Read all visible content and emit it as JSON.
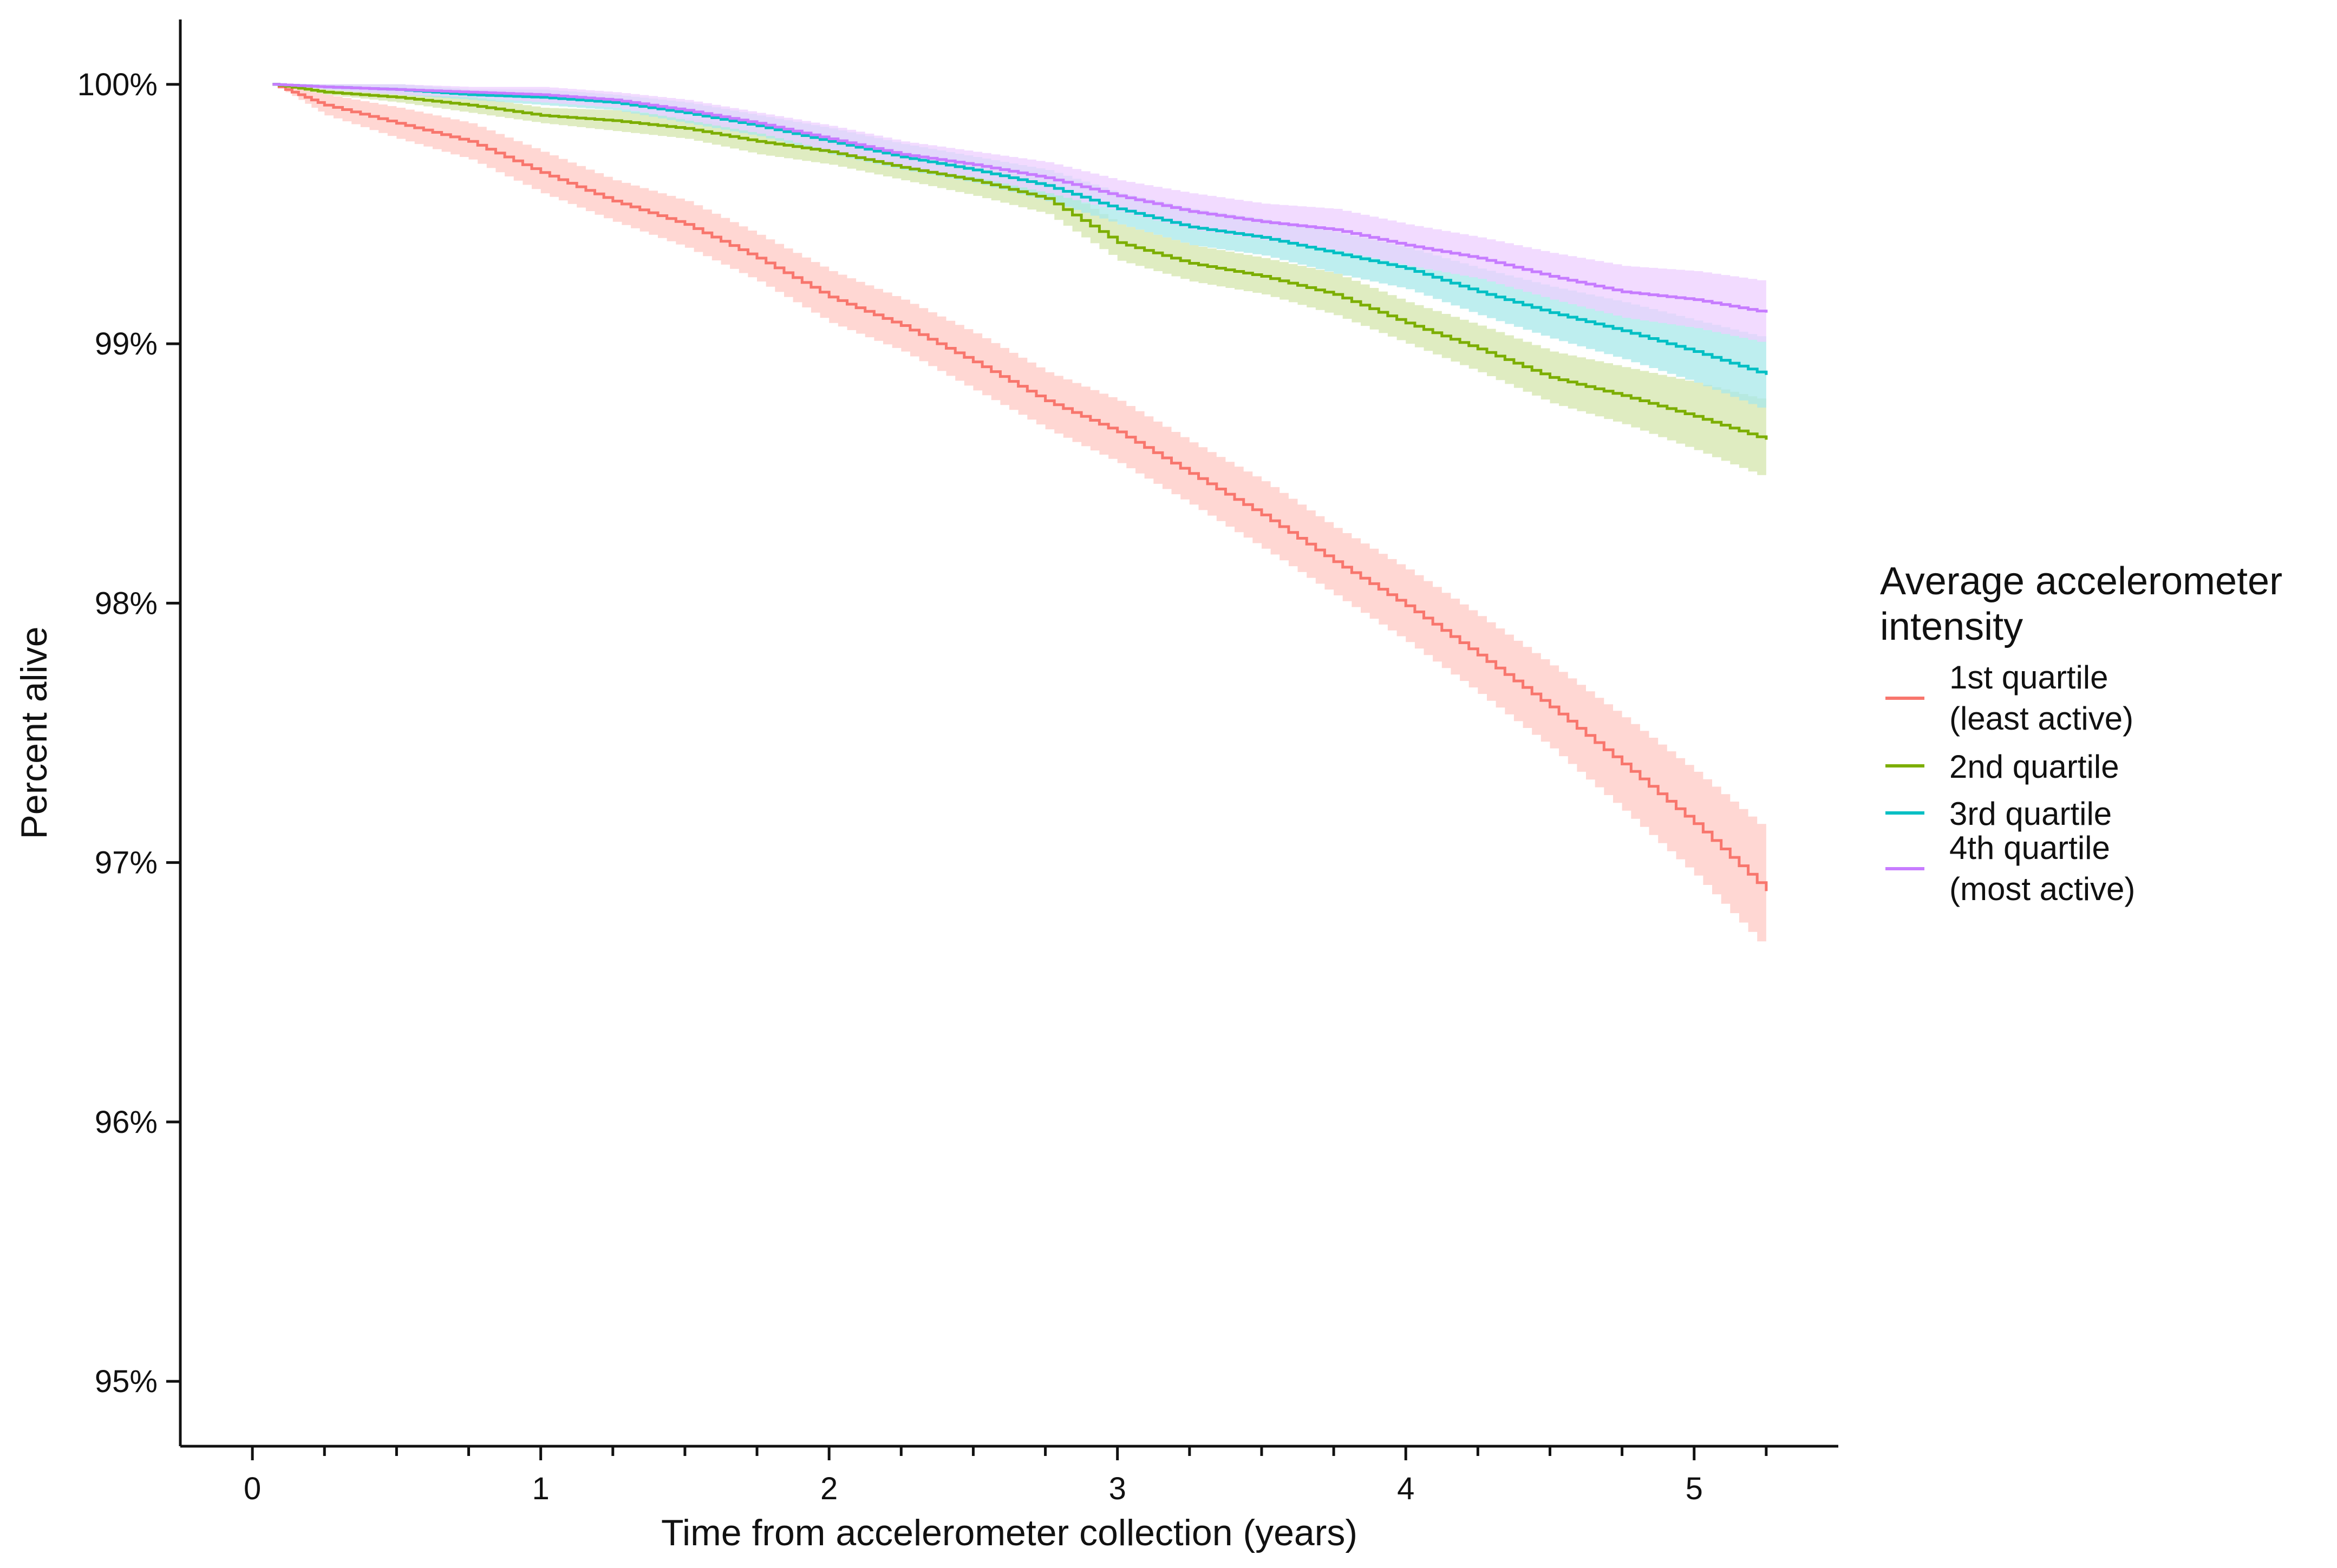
{
  "chart_data": {
    "type": "line",
    "title": "",
    "xlabel": "Time from accelerometer collection (years)",
    "ylabel": "Percent alive",
    "xlim": [
      -0.25,
      5.5
    ],
    "ylim": [
      94.75,
      100.25
    ],
    "x_ticks": [
      0,
      1,
      2,
      3,
      4,
      5
    ],
    "x_tick_labels": [
      "0",
      "1",
      "2",
      "3",
      "4",
      "5"
    ],
    "x_minor_ticks": [
      0.25,
      0.5,
      0.75,
      1.25,
      1.5,
      1.75,
      2.25,
      2.5,
      2.75,
      3.25,
      3.5,
      3.75,
      4.25,
      4.5,
      4.75,
      5.25
    ],
    "y_ticks": [
      95,
      96,
      97,
      98,
      99,
      100
    ],
    "y_tick_labels": [
      "95%",
      "96%",
      "97%",
      "98%",
      "99%",
      "100%"
    ],
    "grid": false,
    "legend": {
      "position": "right",
      "title_lines": [
        "Average accelerometer",
        "intensity"
      ]
    },
    "x": [
      0.07,
      0.25,
      0.5,
      0.75,
      1.0,
      1.25,
      1.5,
      1.75,
      2.0,
      2.25,
      2.5,
      2.75,
      3.0,
      3.25,
      3.5,
      3.75,
      4.0,
      4.25,
      4.5,
      4.75,
      5.0,
      5.25
    ],
    "series": [
      {
        "name": "1st quartile (least active)",
        "label_lines": [
          "1st quartile",
          "(least active)"
        ],
        "color": "#F8766D",
        "band_color": "#FFC9C4",
        "values": [
          100.0,
          99.92,
          99.85,
          99.78,
          99.66,
          99.55,
          99.46,
          99.33,
          99.18,
          99.07,
          98.93,
          98.78,
          98.66,
          98.5,
          98.34,
          98.16,
          97.99,
          97.8,
          97.6,
          97.38,
          97.15,
          96.89
        ],
        "ci_half_width": [
          0.0,
          0.04,
          0.06,
          0.07,
          0.08,
          0.08,
          0.09,
          0.09,
          0.1,
          0.1,
          0.11,
          0.11,
          0.12,
          0.12,
          0.13,
          0.13,
          0.14,
          0.15,
          0.16,
          0.18,
          0.2,
          0.23
        ]
      },
      {
        "name": "2nd quartile",
        "label_lines": [
          "2nd quartile"
        ],
        "color": "#7CAE00",
        "band_color": "#D4E6AC",
        "values": [
          100.0,
          99.97,
          99.95,
          99.92,
          99.88,
          99.86,
          99.83,
          99.78,
          99.74,
          99.68,
          99.63,
          99.56,
          99.39,
          99.31,
          99.26,
          99.19,
          99.08,
          98.98,
          98.87,
          98.8,
          98.72,
          98.63
        ],
        "ci_half_width": [
          0.0,
          0.01,
          0.02,
          0.03,
          0.03,
          0.04,
          0.04,
          0.05,
          0.05,
          0.05,
          0.06,
          0.06,
          0.07,
          0.07,
          0.07,
          0.08,
          0.08,
          0.09,
          0.1,
          0.11,
          0.13,
          0.15
        ]
      },
      {
        "name": "3rd quartile",
        "label_lines": [
          "3rd quartile"
        ],
        "color": "#00BFC4",
        "band_color": "#A8E8EA",
        "values": [
          100.0,
          99.99,
          99.98,
          99.96,
          99.95,
          99.93,
          99.89,
          99.84,
          99.78,
          99.72,
          99.67,
          99.61,
          99.52,
          99.45,
          99.41,
          99.35,
          99.29,
          99.2,
          99.12,
          99.05,
          98.97,
          98.88
        ],
        "ci_half_width": [
          0.0,
          0.01,
          0.02,
          0.02,
          0.03,
          0.03,
          0.04,
          0.04,
          0.05,
          0.05,
          0.05,
          0.06,
          0.06,
          0.07,
          0.07,
          0.08,
          0.08,
          0.09,
          0.1,
          0.11,
          0.12,
          0.14
        ]
      },
      {
        "name": "4th quartile (most active)",
        "label_lines": [
          "4th quartile",
          "(most active)"
        ],
        "color": "#C77CFF",
        "band_color": "#EDCFFF",
        "values": [
          100.0,
          99.99,
          99.98,
          99.97,
          99.96,
          99.94,
          99.9,
          99.85,
          99.79,
          99.73,
          99.69,
          99.64,
          99.57,
          99.51,
          99.47,
          99.44,
          99.38,
          99.33,
          99.26,
          99.2,
          99.17,
          99.12
        ],
        "ci_half_width": [
          0.0,
          0.01,
          0.02,
          0.02,
          0.03,
          0.03,
          0.04,
          0.04,
          0.05,
          0.05,
          0.05,
          0.06,
          0.06,
          0.07,
          0.07,
          0.08,
          0.08,
          0.08,
          0.09,
          0.1,
          0.11,
          0.12
        ]
      }
    ]
  }
}
